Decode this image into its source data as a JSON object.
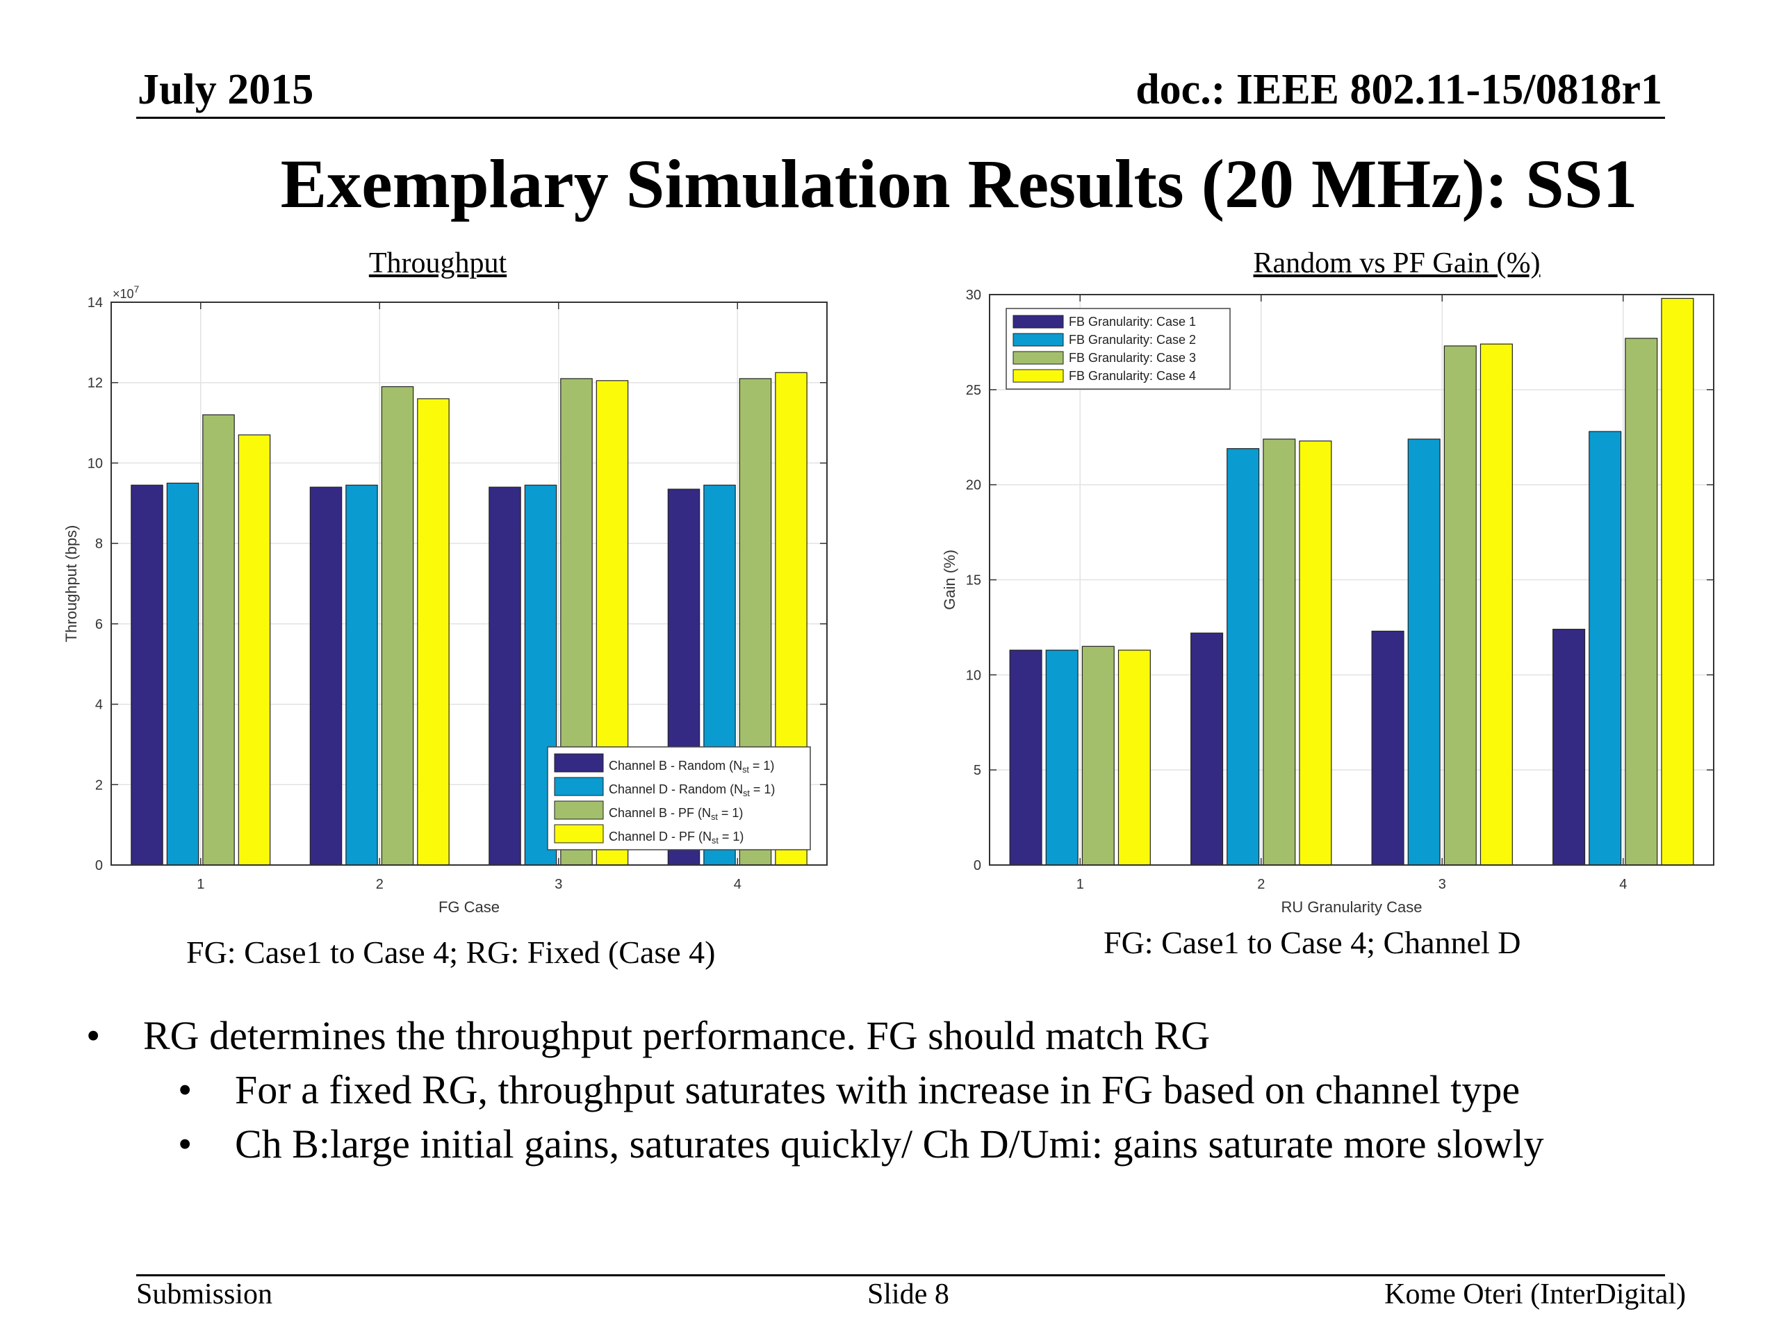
{
  "header": {
    "date": "July 2015",
    "doc": "doc.: IEEE 802.11-15/0818r1"
  },
  "slide_title": "Exemplary Simulation Results (20 MHz): SS1",
  "left_chart_heading": "Throughput",
  "right_chart_heading": "Random vs PF Gain  (%)",
  "captions": {
    "left": "FG: Case1 to Case 4; RG: Fixed (Case 4)",
    "right": "FG: Case1 to Case 4; Channel D"
  },
  "bullets": [
    {
      "level": 1,
      "text": "RG determines the throughput performance. FG should match RG"
    },
    {
      "level": 2,
      "text": "For a fixed RG, throughput saturates with increase in FG based on channel type"
    },
    {
      "level": 2,
      "text": "Ch B:large initial gains, saturates quickly/ Ch D/Umi: gains saturate more slowly"
    }
  ],
  "bullet_glyph": "•",
  "footer": {
    "left": "Submission",
    "center": "Slide 8",
    "right": "Kome Oteri (InterDigital)"
  },
  "colors": {
    "navy": "#342a84",
    "blue": "#0a9bd0",
    "green": "#a3bf6b",
    "yellow": "#fbfb09"
  },
  "chart_data": [
    {
      "type": "bar",
      "xlabel": "FG  Case",
      "ylabel": "Throughput   (bps)",
      "y_exponent_label": "×10",
      "y_exponent": "7",
      "categories": [
        "1",
        "2",
        "3",
        "4"
      ],
      "yticks": [
        "0",
        "2",
        "4",
        "6",
        "8",
        "10",
        "12",
        "14"
      ],
      "ylim": [
        0,
        14
      ],
      "grid": true,
      "legend_position": "bottom-right",
      "series": [
        {
          "name": "Channel B - Random (N",
          "name_sub": "st",
          "name_end": " = 1)",
          "color": "#342a84",
          "values": [
            9.45,
            9.4,
            9.4,
            9.35
          ]
        },
        {
          "name": "Channel D - Random (N",
          "name_sub": "st",
          "name_end": " = 1)",
          "color": "#0a9bd0",
          "values": [
            9.5,
            9.45,
            9.45,
            9.45
          ]
        },
        {
          "name": "Channel B - PF (N",
          "name_sub": "st",
          "name_end": " = 1)",
          "color": "#a3bf6b",
          "values": [
            11.2,
            11.9,
            12.1,
            12.1
          ]
        },
        {
          "name": "Channel D - PF (N",
          "name_sub": "st",
          "name_end": " = 1)",
          "color": "#fbfb09",
          "values": [
            10.7,
            11.6,
            12.05,
            12.25
          ]
        }
      ]
    },
    {
      "type": "bar",
      "xlabel": "RU Granularity Case",
      "ylabel": "Gain (%)",
      "categories": [
        "1",
        "2",
        "3",
        "4"
      ],
      "yticks": [
        "0",
        "5",
        "10",
        "15",
        "20",
        "25",
        "30"
      ],
      "ylim": [
        0,
        30
      ],
      "grid": true,
      "legend_position": "top-left",
      "series": [
        {
          "name": "FB Granularity: Case 1",
          "color": "#342a84",
          "values": [
            11.3,
            12.2,
            12.3,
            12.4
          ]
        },
        {
          "name": "FB Granularity: Case 2",
          "color": "#0a9bd0",
          "values": [
            11.3,
            21.9,
            22.4,
            22.8
          ]
        },
        {
          "name": "FB Granularity: Case 3",
          "color": "#a3bf6b",
          "values": [
            11.5,
            22.4,
            27.3,
            27.7
          ]
        },
        {
          "name": "FB Granularity: Case 4",
          "color": "#fbfb09",
          "values": [
            11.3,
            22.3,
            27.4,
            29.8
          ]
        }
      ]
    }
  ]
}
